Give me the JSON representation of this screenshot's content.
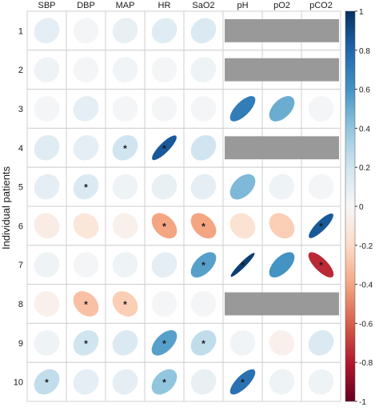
{
  "chart_data": {
    "type": "heatmap",
    "ylabel": "Individual patients",
    "columns": [
      "SBP",
      "DBP",
      "MAP",
      "HR",
      "SaO2",
      "pH",
      "pO2",
      "pCO2"
    ],
    "rows": [
      "1",
      "2",
      "3",
      "4",
      "5",
      "6",
      "7",
      "8",
      "9",
      "10"
    ],
    "values": [
      [
        0.1,
        0.02,
        0.08,
        0.12,
        0.15,
        null,
        null,
        null
      ],
      [
        0.05,
        0.02,
        0.03,
        0.02,
        0.05,
        null,
        null,
        null
      ],
      [
        0.02,
        0.1,
        0.02,
        0.02,
        0.02,
        0.7,
        0.5,
        0.02
      ],
      [
        0.12,
        0.1,
        0.2,
        0.85,
        0.2,
        null,
        null,
        null
      ],
      [
        0.1,
        0.15,
        0.05,
        0.08,
        0.1,
        0.45,
        0.05,
        0.02
      ],
      [
        -0.08,
        -0.12,
        -0.05,
        -0.4,
        -0.4,
        -0.15,
        -0.25,
        0.85
      ],
      [
        0.05,
        0.02,
        0.05,
        0.1,
        0.55,
        0.95,
        0.6,
        -0.75
      ],
      [
        -0.05,
        -0.3,
        -0.25,
        0.02,
        0.02,
        null,
        null,
        null
      ],
      [
        0.05,
        0.2,
        0.15,
        0.55,
        0.25,
        0.03,
        -0.05,
        0.15
      ],
      [
        0.25,
        0.1,
        0.1,
        0.4,
        0.08,
        0.75,
        0.05,
        0.05
      ]
    ],
    "significant": [
      [
        false,
        false,
        false,
        false,
        false,
        false,
        false,
        false
      ],
      [
        false,
        false,
        false,
        false,
        false,
        false,
        false,
        false
      ],
      [
        false,
        false,
        false,
        false,
        false,
        false,
        false,
        false
      ],
      [
        false,
        false,
        true,
        true,
        false,
        false,
        false,
        false
      ],
      [
        false,
        true,
        false,
        false,
        false,
        false,
        false,
        false
      ],
      [
        false,
        false,
        false,
        true,
        true,
        false,
        false,
        true
      ],
      [
        false,
        false,
        false,
        false,
        true,
        true,
        false,
        true
      ],
      [
        false,
        true,
        true,
        false,
        false,
        false,
        false,
        false
      ],
      [
        false,
        true,
        false,
        true,
        true,
        false,
        false,
        false
      ],
      [
        true,
        false,
        false,
        true,
        false,
        true,
        false,
        false
      ]
    ],
    "significance_marker": "*",
    "colorbar": {
      "range": [
        -1,
        1
      ],
      "ticks": [
        "1",
        "0.8",
        "0.6",
        "0.4",
        "0.2",
        "0",
        "-0.2",
        "-0.4",
        "-0.6",
        "-0.8",
        "-1"
      ],
      "low_color": "#67001f",
      "mid_color": "#f7f7f7",
      "high_color": "#053061"
    },
    "missing_color": "#999999"
  }
}
